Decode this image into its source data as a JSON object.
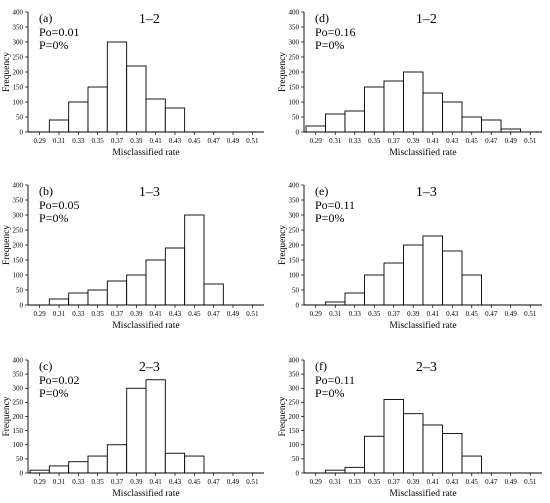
{
  "figure": {
    "xlabel": "Misclassified rate",
    "ylabel": "Frequency",
    "x_ticks": [
      "0.29",
      "0.31",
      "0.33",
      "0.35",
      "0.37",
      "0.39",
      "0.41",
      "0.43",
      "0.45",
      "0.47",
      "0.49",
      "0.51"
    ],
    "y_ticks": [
      "0",
      "50",
      "100",
      "150",
      "200",
      "250",
      "300",
      "350",
      "400"
    ],
    "bar_fill": "#ffffff",
    "bar_stroke": "#000000"
  },
  "chart_data": [
    {
      "type": "bar",
      "panel": "(a)",
      "title": "1–2",
      "po": "Po=0.01",
      "p": "P=0%",
      "xlabel": "Misclassified rate",
      "ylabel": "Frequency",
      "categories": [
        "0.29",
        "0.31",
        "0.33",
        "0.35",
        "0.37",
        "0.39",
        "0.41",
        "0.43",
        "0.45",
        "0.47",
        "0.49",
        "0.51"
      ],
      "values": [
        0,
        40,
        100,
        150,
        300,
        220,
        110,
        80,
        0,
        0,
        0,
        0
      ],
      "ylim": [
        0,
        400
      ]
    },
    {
      "type": "bar",
      "panel": "(d)",
      "title": "1–2",
      "po": "Po=0.16",
      "p": "P=0%",
      "xlabel": "Misclassified rate",
      "ylabel": "Frequency",
      "categories": [
        "0.29",
        "0.31",
        "0.33",
        "0.35",
        "0.37",
        "0.39",
        "0.41",
        "0.43",
        "0.45",
        "0.47",
        "0.49",
        "0.51"
      ],
      "values": [
        20,
        60,
        70,
        150,
        170,
        200,
        130,
        100,
        50,
        40,
        10,
        0
      ],
      "ylim": [
        0,
        400
      ]
    },
    {
      "type": "bar",
      "panel": "(b)",
      "title": "1–3",
      "po": "Po=0.05",
      "p": "P=0%",
      "xlabel": "Misclassified rate",
      "ylabel": "Frequency",
      "categories": [
        "0.29",
        "0.31",
        "0.33",
        "0.35",
        "0.37",
        "0.39",
        "0.41",
        "0.43",
        "0.45",
        "0.47",
        "0.49",
        "0.51"
      ],
      "values": [
        0,
        20,
        40,
        50,
        80,
        100,
        150,
        190,
        300,
        70,
        0,
        0
      ],
      "ylim": [
        0,
        400
      ]
    },
    {
      "type": "bar",
      "panel": "(e)",
      "title": "1–3",
      "po": "Po=0.11",
      "p": "P=0%",
      "xlabel": "Misclassified rate",
      "ylabel": "Frequency",
      "categories": [
        "0.29",
        "0.31",
        "0.33",
        "0.35",
        "0.37",
        "0.39",
        "0.41",
        "0.43",
        "0.45",
        "0.47",
        "0.49",
        "0.51"
      ],
      "values": [
        0,
        10,
        40,
        100,
        140,
        200,
        230,
        180,
        100,
        0,
        0,
        0
      ],
      "ylim": [
        0,
        400
      ]
    },
    {
      "type": "bar",
      "panel": "(c)",
      "title": "2–3",
      "po": "Po=0.02",
      "p": "P=0%",
      "xlabel": "Misclassified rate",
      "ylabel": "Frequency",
      "categories": [
        "0.29",
        "0.31",
        "0.33",
        "0.35",
        "0.37",
        "0.39",
        "0.41",
        "0.43",
        "0.45",
        "0.47",
        "0.49",
        "0.51"
      ],
      "values": [
        10,
        25,
        40,
        60,
        100,
        300,
        330,
        70,
        60,
        0,
        0,
        0
      ],
      "ylim": [
        0,
        400
      ]
    },
    {
      "type": "bar",
      "panel": "(f)",
      "title": "2–3",
      "po": "Po=0.11",
      "p": "P=0%",
      "xlabel": "Misclassified rate",
      "ylabel": "Frequency",
      "categories": [
        "0.29",
        "0.31",
        "0.33",
        "0.35",
        "0.37",
        "0.39",
        "0.41",
        "0.43",
        "0.45",
        "0.47",
        "0.49",
        "0.51"
      ],
      "values": [
        0,
        10,
        20,
        130,
        260,
        210,
        170,
        140,
        60,
        0,
        0,
        0
      ],
      "ylim": [
        0,
        400
      ]
    }
  ]
}
